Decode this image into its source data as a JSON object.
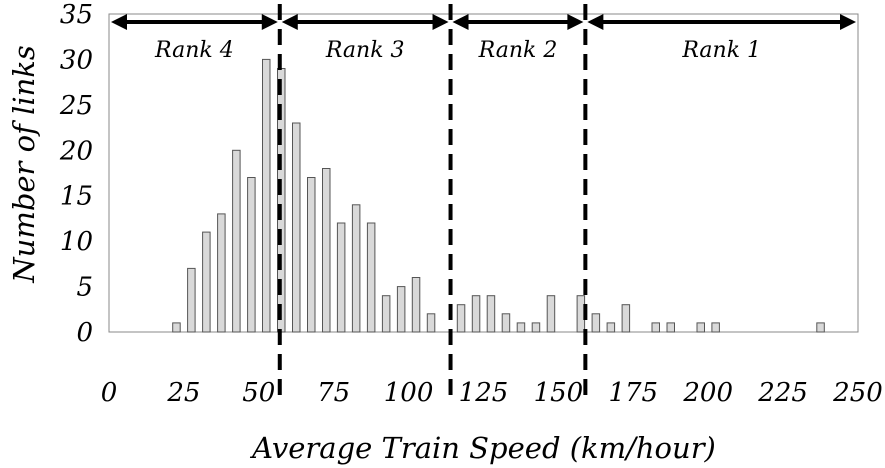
{
  "chart_data": {
    "type": "bar",
    "xlabel": "Average Train Speed (km/hour)",
    "ylabel": "Number of links",
    "x_ticks": [
      "0",
      "25",
      "50",
      "75",
      "100",
      "125",
      "150",
      "175",
      "200",
      "225",
      "250"
    ],
    "y_ticks": [
      "0",
      "5",
      "10",
      "15",
      "20",
      "25",
      "30",
      "35"
    ],
    "xlim": [
      0,
      250
    ],
    "ylim": [
      0,
      35
    ],
    "bin_width": 5,
    "x": [
      20,
      25,
      30,
      35,
      40,
      45,
      50,
      55,
      60,
      65,
      70,
      75,
      80,
      85,
      90,
      95,
      100,
      105,
      110,
      115,
      120,
      125,
      130,
      135,
      140,
      145,
      150,
      155,
      160,
      165,
      170,
      175,
      180,
      185,
      190,
      195,
      200,
      205,
      235
    ],
    "values": [
      1,
      7,
      11,
      13,
      20,
      17,
      30,
      29,
      23,
      17,
      18,
      12,
      14,
      12,
      4,
      5,
      6,
      2,
      0,
      3,
      4,
      4,
      2,
      1,
      1,
      4,
      0,
      4,
      2,
      1,
      3,
      0,
      1,
      1,
      0,
      1,
      1,
      0,
      1
    ],
    "rank_boundaries": [
      57,
      114,
      159
    ],
    "ranks": [
      {
        "label": "Rank 4",
        "from": 0,
        "to": 57
      },
      {
        "label": "Rank 3",
        "from": 57,
        "to": 114
      },
      {
        "label": "Rank 2",
        "from": 114,
        "to": 159
      },
      {
        "label": "Rank 1",
        "from": 159,
        "to": 250
      }
    ],
    "grid": false,
    "colors": {
      "bar_fill": "#d9d9d9",
      "bar_stroke": "#555555",
      "line": "#000000"
    }
  }
}
